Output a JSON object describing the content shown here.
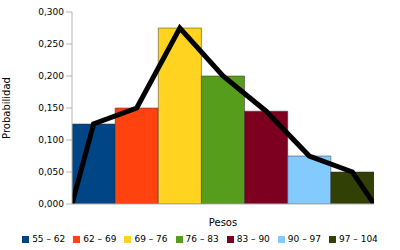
{
  "chart_data": {
    "type": "histogram",
    "x_label": "Pesos",
    "y_label": "Probabilidad",
    "bins": [
      55,
      62,
      69,
      76,
      83,
      90,
      97,
      104
    ],
    "categories": [
      "55 – 62",
      "62 – 69",
      "69 – 76",
      "76 – 83",
      "83 – 90",
      "90 – 97",
      "97 – 104"
    ],
    "values": [
      0.125,
      0.15,
      0.275,
      0.2,
      0.145,
      0.075,
      0.05
    ],
    "colors": [
      "#004586",
      "#ff420e",
      "#ffd320",
      "#579d1c",
      "#7e0021",
      "#83caff",
      "#314004"
    ],
    "polygon": {
      "type": "line",
      "color": "#000000",
      "x": [
        55,
        58.5,
        65.5,
        72.5,
        79.5,
        86.5,
        93.5,
        100.5,
        104
      ],
      "values": [
        0,
        0.125,
        0.15,
        0.275,
        0.2,
        0.145,
        0.075,
        0.05,
        0
      ]
    },
    "xlim": [
      55,
      104
    ],
    "ylim": [
      0,
      0.3
    ],
    "yticks": [
      {
        "value": 0,
        "label": "0,000"
      },
      {
        "value": 0.05,
        "label": "0,050"
      },
      {
        "value": 0.1,
        "label": "0,100"
      },
      {
        "value": 0.15,
        "label": "0,150"
      },
      {
        "value": 0.2,
        "label": "0,200"
      },
      {
        "value": 0.25,
        "label": "0,250"
      },
      {
        "value": 0.3,
        "label": "0,300"
      }
    ],
    "grid": false,
    "legend": "bottom",
    "tick_labels": "y"
  }
}
